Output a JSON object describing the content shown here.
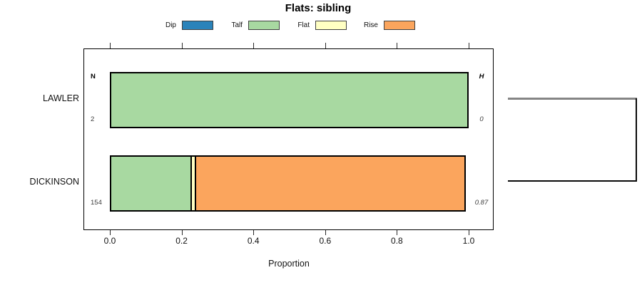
{
  "title": "Flats: sibling",
  "legend": {
    "items": [
      {
        "label": "Dip",
        "color": "#2b83ba"
      },
      {
        "label": "Talf",
        "color": "#a8d9a1"
      },
      {
        "label": "Flat",
        "color": "#ffffc3"
      },
      {
        "label": "Rise",
        "color": "#fba55d"
      }
    ]
  },
  "columns": {
    "left": "N",
    "right": "H"
  },
  "rows": [
    {
      "name": "LAWLER",
      "n": "2",
      "h": "0",
      "segments": [
        {
          "category": "Talf",
          "value": 1.0
        }
      ]
    },
    {
      "name": "DICKINSON",
      "n": "154",
      "h": "0.87",
      "segments": [
        {
          "category": "Talf",
          "value": 0.229
        },
        {
          "category": "Flat",
          "value": 0.016
        },
        {
          "category": "Rise",
          "value": 0.755
        }
      ]
    }
  ],
  "axis": {
    "label": "Proportion",
    "ticks": [
      "0.0",
      "0.2",
      "0.4",
      "0.6",
      "0.8",
      "1.0"
    ]
  },
  "colors": {
    "Dip": "#2b83ba",
    "Talf": "#a8d9a1",
    "Flat": "#ffffc3",
    "Rise": "#fba55d"
  },
  "chart_data": {
    "type": "bar",
    "orientation": "horizontal",
    "stacked": true,
    "title": "Flats: sibling",
    "categories": [
      "LAWLER",
      "DICKINSON"
    ],
    "series": [
      {
        "name": "Dip",
        "color": "#2b83ba",
        "values": [
          0,
          0
        ]
      },
      {
        "name": "Talf",
        "color": "#a8d9a1",
        "values": [
          1.0,
          0.229
        ]
      },
      {
        "name": "Flat",
        "color": "#ffffc3",
        "values": [
          0,
          0.016
        ]
      },
      {
        "name": "Rise",
        "color": "#fba55d",
        "values": [
          0,
          0.755
        ]
      }
    ],
    "xlabel": "Proportion",
    "xlim": [
      0,
      1
    ],
    "xticks": [
      0.0,
      0.2,
      0.4,
      0.6,
      0.8,
      1.0
    ],
    "legend_position": "top",
    "grid": false,
    "annotations": {
      "N": {
        "LAWLER": 2,
        "DICKINSON": 154
      },
      "H": {
        "LAWLER": 0,
        "DICKINSON": 0.87
      }
    },
    "right_margin_plot": "dendrogram bracket joining LAWLER and DICKINSON"
  }
}
